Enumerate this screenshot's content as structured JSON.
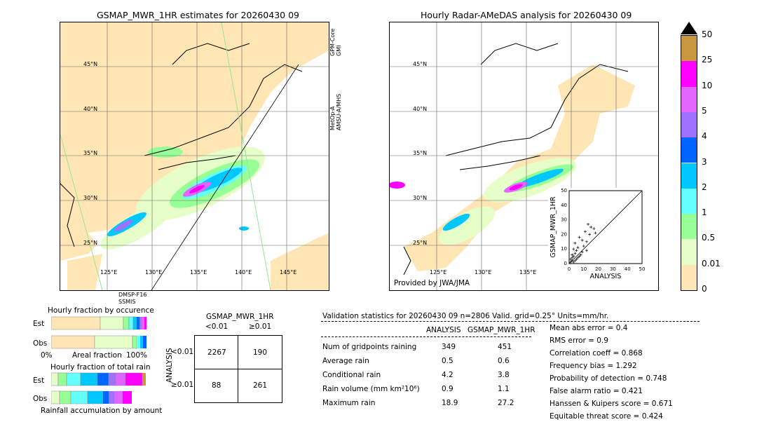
{
  "left_map": {
    "title": "GSMAP_MWR_1HR estimates for 20260430 09",
    "lat_labels": [
      "45°N",
      "40°N",
      "35°N",
      "30°N",
      "25°N"
    ],
    "lon_labels": [
      "125°E",
      "130°E",
      "135°E",
      "140°E",
      "145°E"
    ],
    "sensor_labels": {
      "gpm": "GPM-Core\nGMI",
      "metop": "MetOp-A\nAMSU-A/MHS",
      "dmsp": "DMSP-F16\nSSMIS"
    }
  },
  "right_map": {
    "title": "Hourly Radar-AMeDAS analysis for 20260430 09",
    "lat_labels": [
      "45°N",
      "40°N",
      "35°N",
      "30°N",
      "25°N"
    ],
    "lon_labels": [
      "125°E",
      "130°E",
      "135°E"
    ],
    "provider": "Provided by JWA/JMA"
  },
  "colorbar": {
    "labels": [
      "50",
      "25",
      "10",
      "5",
      "4",
      "3",
      "2",
      "1",
      "0.5",
      "0.01",
      "0"
    ],
    "colors": [
      "#c8963c",
      "#ff00ff",
      "#e066ff",
      "#a070ff",
      "#0064ff",
      "#00c8ff",
      "#64ffff",
      "#96ff96",
      "#e6ffc8",
      "#ffe6b4"
    ]
  },
  "fraction": {
    "occ_title": "Hourly fraction by occurence",
    "tot_title": "Hourly fraction of total rain",
    "row_est": "Est",
    "row_obs": "Obs",
    "axis_left": "0%",
    "axis_mid": "Areal fraction",
    "axis_right": "100%",
    "bottom_label": "Rainfall accumulation by amount"
  },
  "contingency": {
    "title": "GSMAP_MWR_1HR",
    "col1": "<0.01",
    "col2": "≥0.01",
    "row1": "<0.01",
    "row2": "≥0.01",
    "ylabel": "ANALYSIS",
    "cells": [
      "2267",
      "190",
      "88",
      "261"
    ]
  },
  "validation": {
    "header": "Validation statistics for 20260430 09  n=2806 Valid. grid=0.25° Units=mm/hr.",
    "col_analysis": "ANALYSIS",
    "col_gsmap": "GSMAP_MWR_1HR",
    "rows": [
      {
        "label": "Num of gridpoints raining",
        "a": "349",
        "g": "451"
      },
      {
        "label": "Average rain",
        "a": "0.5",
        "g": "0.6"
      },
      {
        "label": "Conditional rain",
        "a": "4.2",
        "g": "3.8"
      },
      {
        "label": "Rain volume (mm km²10⁶)",
        "a": "0.9",
        "g": "1.1"
      },
      {
        "label": "Maximum rain",
        "a": "18.9",
        "g": "27.2"
      }
    ],
    "scores": [
      "Mean abs error =    0.4",
      "RMS error =    0.9",
      "Correlation coeff =  0.868",
      "Frequency bias =  1.292",
      "Probability of detection =  0.748",
      "False alarm ratio =  0.421",
      "Hanssen & Kuipers score =  0.671",
      "Equitable threat score =  0.424"
    ]
  },
  "chart_data": {
    "type": "scatter",
    "xlabel": "ANALYSIS",
    "ylabel": "GSMAP_MWR_1HR",
    "xlim": [
      0,
      50
    ],
    "ylim": [
      0,
      50
    ],
    "ticks": [
      "0",
      "10",
      "20",
      "30",
      "40",
      "50"
    ],
    "x": [
      1,
      2,
      3,
      1,
      2,
      4,
      3,
      5,
      2,
      6,
      4,
      7,
      5,
      8,
      3,
      6,
      9,
      10,
      4,
      12,
      7,
      14,
      11,
      15,
      13,
      17,
      18,
      9,
      12
    ],
    "y": [
      1,
      2,
      1,
      3,
      4,
      2,
      5,
      3,
      6,
      4,
      7,
      5,
      9,
      6,
      10,
      11,
      8,
      12,
      14,
      15,
      18,
      20,
      22,
      25,
      27,
      24,
      21,
      16,
      9
    ]
  }
}
